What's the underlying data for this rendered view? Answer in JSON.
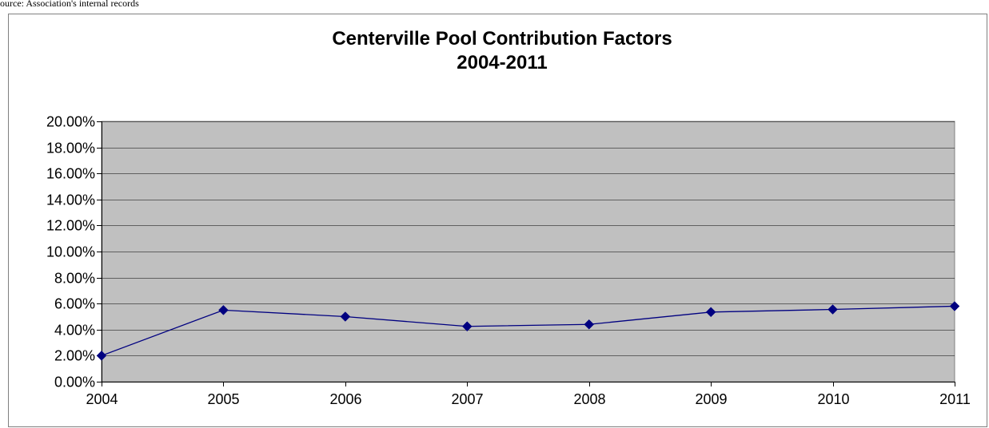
{
  "source_note": "ource: Association's internal records",
  "chart_data": {
    "type": "line",
    "title": "Centerville Pool Contribution Factors",
    "subtitle": "2004-2011",
    "xlabel": "",
    "ylabel": "",
    "categories": [
      "2004",
      "2005",
      "2006",
      "2007",
      "2008",
      "2009",
      "2010",
      "2011"
    ],
    "series": [
      {
        "values": [
          2.0,
          5.5,
          5.0,
          4.25,
          4.4,
          5.35,
          5.55,
          5.8
        ],
        "color": "#000080"
      }
    ],
    "ylim": [
      0,
      20
    ],
    "yticks": [
      0,
      2,
      4,
      6,
      8,
      10,
      12,
      14,
      16,
      18,
      20
    ],
    "ytick_labels": [
      "0.00%",
      "2.00%",
      "4.00%",
      "6.00%",
      "8.00%",
      "10.00%",
      "12.00%",
      "14.00%",
      "16.00%",
      "18.00%",
      "20.00%"
    ],
    "grid": true,
    "legend": "none",
    "plot_background": "#c0c0c0",
    "gridline_color": "#000000",
    "marker": "diamond"
  }
}
